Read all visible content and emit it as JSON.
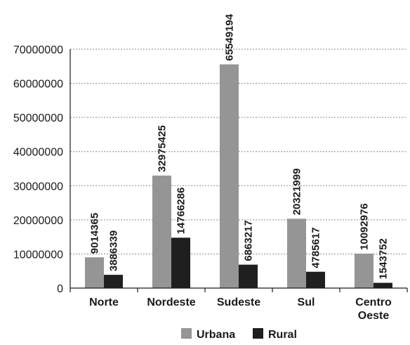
{
  "chart_data": {
    "type": "bar",
    "title": "",
    "xlabel": "",
    "ylabel": "",
    "categories": [
      "Norte",
      "Nordeste",
      "Sudeste",
      "Sul",
      "Centro Oeste"
    ],
    "series": [
      {
        "name": "Urbana",
        "color": "#959595",
        "values": [
          9014365,
          32975425,
          65549194,
          20321999,
          10092976
        ]
      },
      {
        "name": "Rural",
        "color": "#1f1f1f",
        "values": [
          3886339,
          14766286,
          6863217,
          4785617,
          1543752
        ]
      }
    ],
    "ylim": [
      0,
      70000000
    ],
    "yticks": [
      0,
      10000000,
      20000000,
      30000000,
      40000000,
      50000000,
      60000000,
      70000000
    ],
    "grid": true,
    "legend_position": "bottom"
  }
}
